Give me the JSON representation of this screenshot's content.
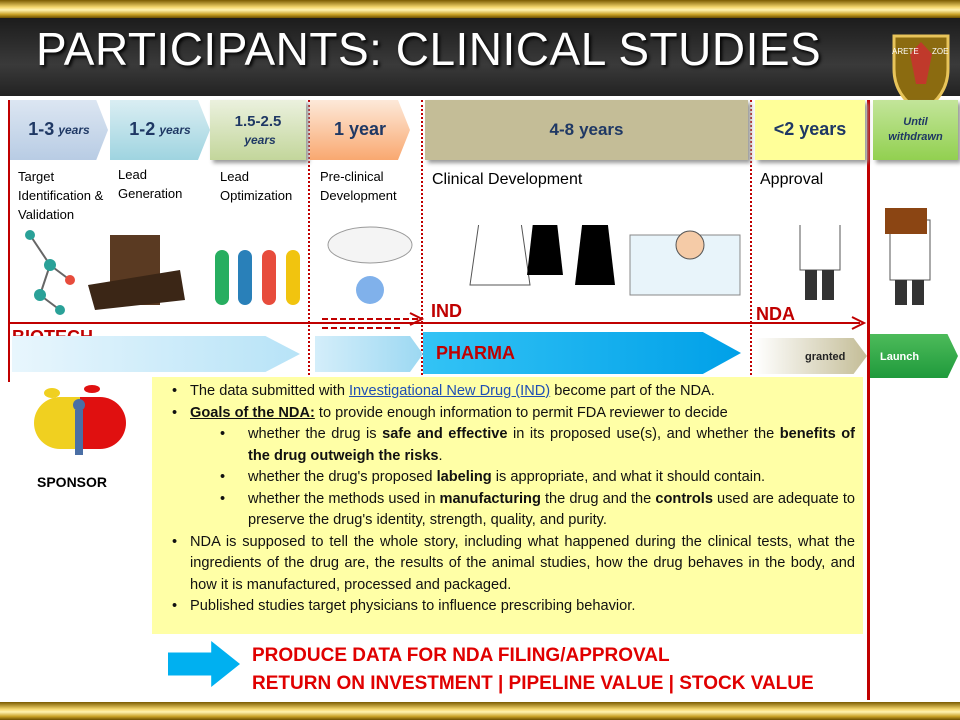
{
  "header": {
    "title": "PARTICIPANTS: CLINICAL STUDIES",
    "logo": [
      "ARETE",
      "ZOE"
    ]
  },
  "phases": [
    {
      "duration": "1-3",
      "unit": "years",
      "label": "Target Identification & Validation"
    },
    {
      "duration": "1-2",
      "unit": "years",
      "label": "Lead Generation"
    },
    {
      "duration": "1.5-2.5",
      "unit": "years",
      "label": "Lead Optimization"
    },
    {
      "duration": "1",
      "unit": "year",
      "label": "Pre-clinical Development"
    },
    {
      "duration": "4-8",
      "unit": "years",
      "label": "Clinical Development"
    },
    {
      "duration": "<2",
      "unit": "years",
      "label": "Approval"
    },
    {
      "duration": "Until withdrawn"
    }
  ],
  "milestones": {
    "ind": "IND",
    "nda": "NDA"
  },
  "stages": {
    "biotech": "BIOTECH",
    "pharma": "PHARMA",
    "granted": "granted",
    "launch": "Launch",
    "sponsor": "SPONSOR"
  },
  "notes": [
    {
      "level": 1,
      "runs": [
        {
          "text": "The data submitted with "
        },
        {
          "text": "Investigational New Drug (IND)",
          "style": "link"
        },
        {
          "text": " become part of the NDA."
        }
      ]
    },
    {
      "level": 1,
      "runs": [
        {
          "text": "Goals of the NDA:",
          "style": "bold-underline"
        },
        {
          "text": " to provide enough information to permit FDA reviewer to decide"
        }
      ]
    },
    {
      "level": 2,
      "runs": [
        {
          "text": "whether the drug is "
        },
        {
          "text": "safe and effective",
          "style": "bold"
        },
        {
          "text": " in its proposed use(s), and whether the "
        },
        {
          "text": "benefits of the drug outweigh the risks",
          "style": "bold"
        },
        {
          "text": "."
        }
      ]
    },
    {
      "level": 2,
      "runs": [
        {
          "text": "whether the drug's proposed "
        },
        {
          "text": "labeling",
          "style": "bold"
        },
        {
          "text": " is appropriate, and what it should contain."
        }
      ]
    },
    {
      "level": 2,
      "runs": [
        {
          "text": "whether the methods used in "
        },
        {
          "text": "manufacturing",
          "style": "bold"
        },
        {
          "text": " the drug and the "
        },
        {
          "text": "controls",
          "style": "bold"
        },
        {
          "text": " used are adequate to preserve the drug's identity, strength, quality, and purity."
        }
      ]
    },
    {
      "level": 1,
      "runs": [
        {
          "text": "NDA is supposed to tell the whole story, including what happened during the clinical tests, what the ingredients of the drug are, the results of the animal studies, how the drug behaves in the body, and how it is manufactured, processed and packaged."
        }
      ]
    },
    {
      "level": 1,
      "runs": [
        {
          "text": "Published studies target physicians to influence prescribing behavior."
        }
      ]
    }
  ],
  "footer": {
    "lines": [
      "PRODUCE DATA FOR NDA FILING/APPROVAL",
      "RETURN ON INVESTMENT | PIPELINE VALUE | STOCK VALUE"
    ]
  }
}
